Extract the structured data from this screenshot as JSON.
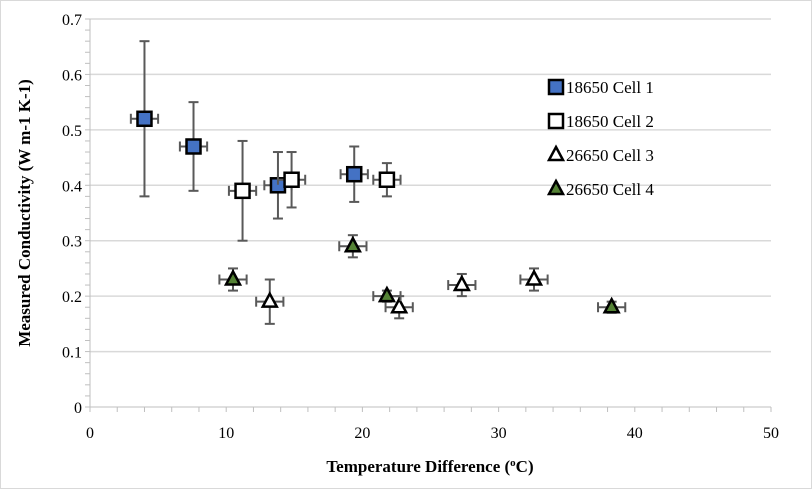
{
  "chart_data": {
    "type": "scatter",
    "xlabel": "Temperature Difference (",
    "xlabel_sup": "o",
    "xlabel_tail": "C)",
    "ylabel": "Measured Conductivity (W m-1 K-1)",
    "xlim": [
      0,
      50
    ],
    "ylim": [
      0,
      0.7
    ],
    "xticks": [
      0,
      10,
      20,
      30,
      40,
      50
    ],
    "yticks": [
      0,
      0.1,
      0.2,
      0.3,
      0.4,
      0.5,
      0.6,
      0.7
    ],
    "ytick_labels": [
      "0",
      "0.1",
      "0.2",
      "0.3",
      "0.4",
      "0.5",
      "0.6",
      "0.7"
    ],
    "grid": "horizontal major",
    "legend_position": "right",
    "series": [
      {
        "name": "18650 Cell 1",
        "marker": "square",
        "fill": "#4472C4",
        "points": [
          {
            "x": 4.0,
            "y": 0.52,
            "ylo": 0.38,
            "yhi": 0.66,
            "xerr": 1.0
          },
          {
            "x": 7.6,
            "y": 0.47,
            "ylo": 0.39,
            "yhi": 0.55,
            "xerr": 1.0
          },
          {
            "x": 13.8,
            "y": 0.4,
            "ylo": 0.34,
            "yhi": 0.46,
            "xerr": 1.0
          },
          {
            "x": 19.4,
            "y": 0.42,
            "ylo": 0.37,
            "yhi": 0.47,
            "xerr": 1.0
          }
        ]
      },
      {
        "name": "18650 Cell 2",
        "marker": "square",
        "fill": "#FFFFFF",
        "points": [
          {
            "x": 11.2,
            "y": 0.39,
            "ylo": 0.3,
            "yhi": 0.48,
            "xerr": 1.0
          },
          {
            "x": 14.8,
            "y": 0.41,
            "ylo": 0.36,
            "yhi": 0.46,
            "xerr": 1.0
          },
          {
            "x": 21.8,
            "y": 0.41,
            "ylo": 0.38,
            "yhi": 0.44,
            "xerr": 1.0
          }
        ]
      },
      {
        "name": "26650 Cell 3",
        "marker": "triangle",
        "fill": "#FFFFFF",
        "points": [
          {
            "x": 13.2,
            "y": 0.19,
            "ylo": 0.15,
            "yhi": 0.23,
            "xerr": 1.0
          },
          {
            "x": 22.7,
            "y": 0.18,
            "ylo": 0.16,
            "yhi": 0.2,
            "xerr": 1.0
          },
          {
            "x": 27.3,
            "y": 0.22,
            "ylo": 0.2,
            "yhi": 0.24,
            "xerr": 1.0
          },
          {
            "x": 32.6,
            "y": 0.23,
            "ylo": 0.21,
            "yhi": 0.25,
            "xerr": 1.0
          }
        ]
      },
      {
        "name": "26650 Cell 4",
        "marker": "triangle",
        "fill": "#548235",
        "points": [
          {
            "x": 10.5,
            "y": 0.23,
            "ylo": 0.21,
            "yhi": 0.25,
            "xerr": 1.0
          },
          {
            "x": 19.3,
            "y": 0.29,
            "ylo": 0.27,
            "yhi": 0.31,
            "xerr": 1.0
          },
          {
            "x": 21.8,
            "y": 0.2,
            "ylo": 0.19,
            "yhi": 0.21,
            "xerr": 1.0
          },
          {
            "x": 38.3,
            "y": 0.18,
            "ylo": 0.17,
            "yhi": 0.19,
            "xerr": 1.0
          }
        ]
      }
    ]
  }
}
